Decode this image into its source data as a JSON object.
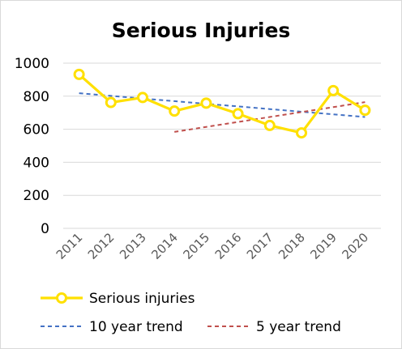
{
  "chart_data": {
    "type": "line",
    "title": "Serious Injuries",
    "xlabel": "",
    "ylabel": "",
    "categories": [
      "2011",
      "2012",
      "2013",
      "2014",
      "2015",
      "2016",
      "2017",
      "2018",
      "2019",
      "2020"
    ],
    "yticks": [
      "0",
      "200",
      "400",
      "600",
      "800",
      "1000"
    ],
    "ylim": [
      0,
      1000
    ],
    "grid": true,
    "legend_position": "bottom",
    "series": [
      {
        "name": "Serious injuries",
        "style": "solid-with-markers",
        "color": "#FFE000",
        "values": [
          932,
          762,
          792,
          710,
          758,
          694,
          623,
          578,
          834,
          715
        ]
      },
      {
        "name": "10 year trend",
        "style": "dashed",
        "color": "#4472C4",
        "values": [
          818,
          802,
          786,
          770,
          754,
          738,
          722,
          706,
          690,
          674
        ]
      },
      {
        "name": "5 year trend",
        "style": "dashed",
        "color": "#C0504D",
        "values": [
          null,
          null,
          null,
          584,
          614,
          644,
          674,
          704,
          734,
          764
        ]
      }
    ]
  }
}
